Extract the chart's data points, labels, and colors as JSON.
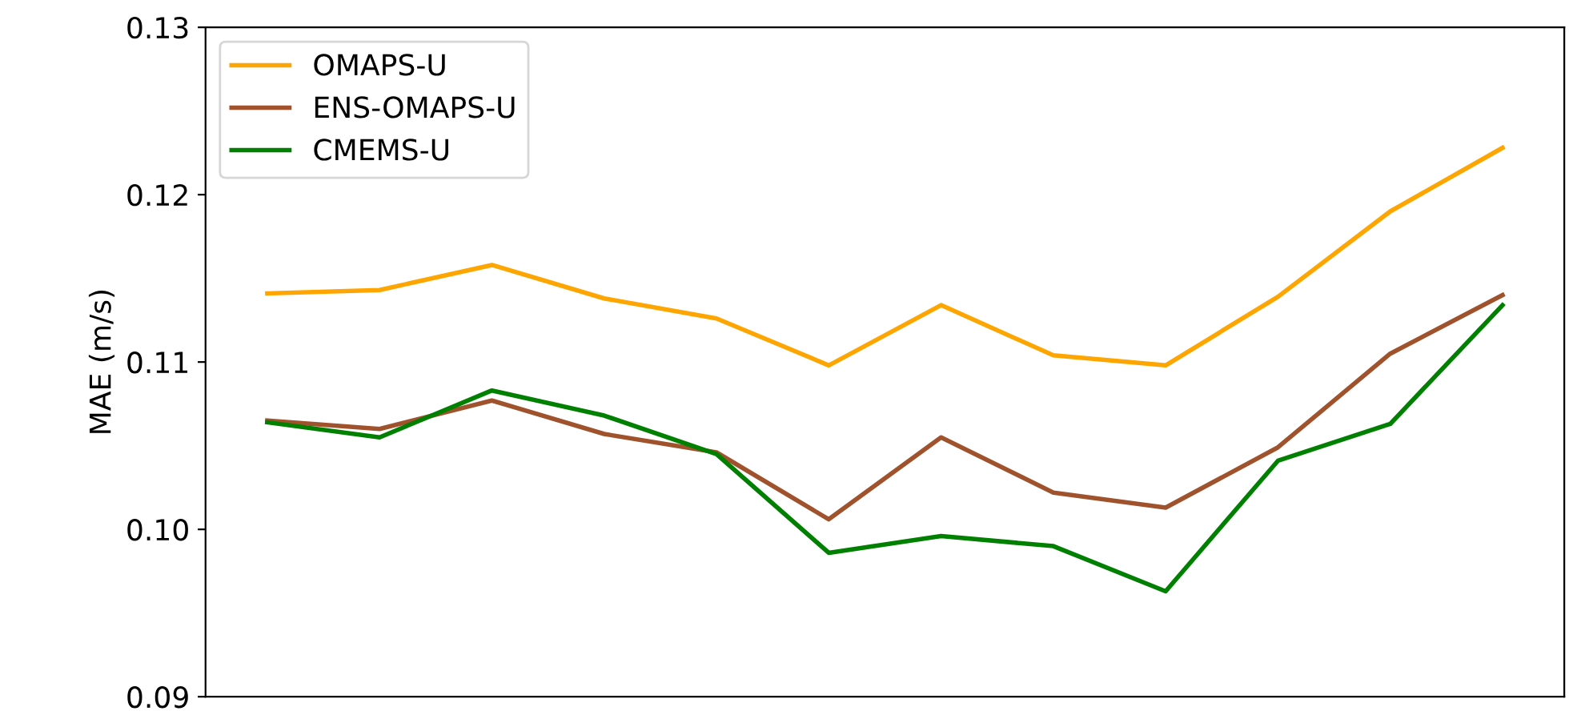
{
  "chart_data": {
    "type": "line",
    "ylabel": "MAE (m/s)",
    "categories": [
      null,
      null,
      null,
      null,
      null,
      null,
      null,
      null,
      null,
      null,
      null,
      null
    ],
    "ylim": [
      0.09,
      0.13
    ],
    "yticks": [
      {
        "value": 0.09,
        "label": "0.09"
      },
      {
        "value": 0.1,
        "label": "0.10"
      },
      {
        "value": 0.11,
        "label": "0.11"
      },
      {
        "value": 0.12,
        "label": "0.12"
      },
      {
        "value": 0.13,
        "label": "0.13"
      }
    ],
    "tick_labels": "y",
    "grid": false,
    "legend": "top left",
    "marker": "none",
    "line_style": "solid",
    "series": [
      {
        "name": "OMAPS-U",
        "color": "#ffa500",
        "values": [
          0.1141,
          0.1143,
          0.1158,
          0.1138,
          0.1126,
          0.1098,
          0.1134,
          0.1104,
          0.1098,
          0.1139,
          0.119,
          0.1228
        ]
      },
      {
        "name": "ENS-OMAPS-U",
        "color": "#a0522d",
        "values": [
          0.1065,
          0.106,
          0.1077,
          0.1057,
          0.1046,
          0.1006,
          0.1055,
          0.1022,
          0.1013,
          0.1049,
          0.1105,
          0.114
        ]
      },
      {
        "name": "CMEMS-U",
        "color": "#008000",
        "values": [
          0.1064,
          0.1055,
          0.1083,
          0.1068,
          0.1045,
          0.0986,
          0.0996,
          0.099,
          0.0963,
          0.1041,
          0.1063,
          0.1134
        ]
      }
    ]
  }
}
